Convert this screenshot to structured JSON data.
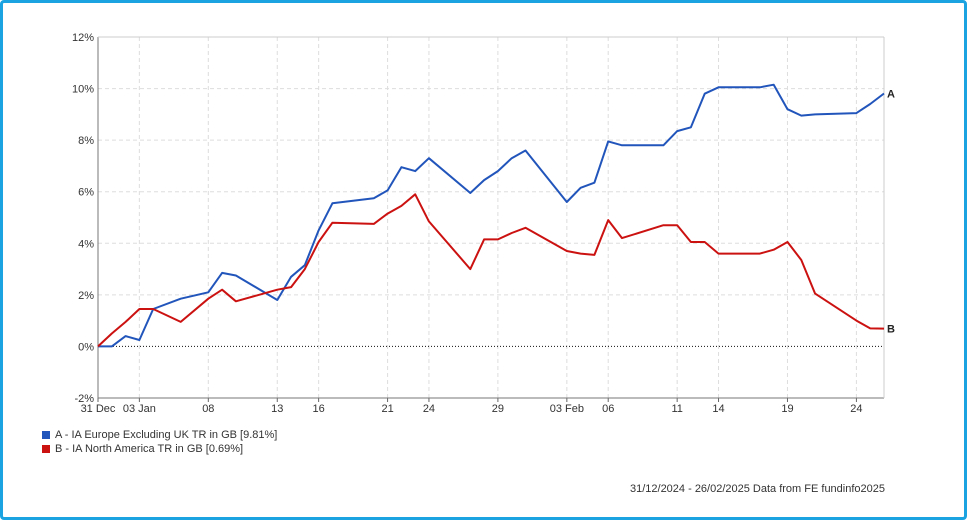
{
  "chart_data": {
    "type": "line",
    "y_ticks": [
      "-2%",
      "0%",
      "2%",
      "4%",
      "6%",
      "8%",
      "10%",
      "12%"
    ],
    "ylim": [
      -2,
      12
    ],
    "y_tick_values": [
      -2,
      0,
      2,
      4,
      6,
      8,
      10,
      12
    ],
    "x_tick_labels": [
      "31 Dec",
      "03 Jan",
      "08",
      "13",
      "16",
      "21",
      "24",
      "29",
      "03 Feb",
      "06",
      "11",
      "14",
      "19",
      "24"
    ],
    "x_tick_values": [
      "2024-12-31",
      "2025-01-03",
      "2025-01-08",
      "2025-01-13",
      "2025-01-16",
      "2025-01-21",
      "2025-01-24",
      "2025-01-29",
      "2025-02-03",
      "2025-02-06",
      "2025-02-11",
      "2025-02-14",
      "2025-02-19",
      "2025-02-24"
    ],
    "xlim": [
      "2024-12-31",
      "2025-02-26"
    ],
    "zero_line": true,
    "grid": true,
    "series": [
      {
        "name": "A - IA Europe Excluding UK TR in GB [9.81%]",
        "end_label": "A",
        "color": "#2255bb",
        "points": [
          [
            "2024-12-31",
            0
          ],
          [
            "2025-01-01",
            0
          ],
          [
            "2025-01-02",
            0.4
          ],
          [
            "2025-01-03",
            0.25
          ],
          [
            "2025-01-04",
            1.45
          ],
          [
            "2025-01-06",
            1.85
          ],
          [
            "2025-01-08",
            2.1
          ],
          [
            "2025-01-09",
            2.85
          ],
          [
            "2025-01-10",
            2.75
          ],
          [
            "2025-01-13",
            1.8
          ],
          [
            "2025-01-14",
            2.7
          ],
          [
            "2025-01-15",
            3.15
          ],
          [
            "2025-01-16",
            4.5
          ],
          [
            "2025-01-17",
            5.55
          ],
          [
            "2025-01-20",
            5.75
          ],
          [
            "2025-01-21",
            6.05
          ],
          [
            "2025-01-22",
            6.95
          ],
          [
            "2025-01-23",
            6.8
          ],
          [
            "2025-01-24",
            7.3
          ],
          [
            "2025-01-27",
            5.95
          ],
          [
            "2025-01-28",
            6.45
          ],
          [
            "2025-01-29",
            6.8
          ],
          [
            "2025-01-30",
            7.3
          ],
          [
            "2025-01-31",
            7.6
          ],
          [
            "2025-02-03",
            5.6
          ],
          [
            "2025-02-04",
            6.15
          ],
          [
            "2025-02-05",
            6.35
          ],
          [
            "2025-02-06",
            7.95
          ],
          [
            "2025-02-07",
            7.8
          ],
          [
            "2025-02-10",
            7.8
          ],
          [
            "2025-02-11",
            8.35
          ],
          [
            "2025-02-12",
            8.5
          ],
          [
            "2025-02-13",
            9.8
          ],
          [
            "2025-02-14",
            10.05
          ],
          [
            "2025-02-17",
            10.05
          ],
          [
            "2025-02-18",
            10.15
          ],
          [
            "2025-02-19",
            9.2
          ],
          [
            "2025-02-20",
            8.95
          ],
          [
            "2025-02-21",
            9.0
          ],
          [
            "2025-02-24",
            9.05
          ],
          [
            "2025-02-25",
            9.4
          ],
          [
            "2025-02-26",
            9.81
          ]
        ]
      },
      {
        "name": "B - IA North America TR in GB [0.69%]",
        "end_label": "B",
        "color": "#cc1111",
        "points": [
          [
            "2024-12-31",
            0
          ],
          [
            "2025-01-01",
            0.5
          ],
          [
            "2025-01-02",
            0.95
          ],
          [
            "2025-01-03",
            1.45
          ],
          [
            "2025-01-04",
            1.45
          ],
          [
            "2025-01-06",
            0.95
          ],
          [
            "2025-01-08",
            1.85
          ],
          [
            "2025-01-09",
            2.2
          ],
          [
            "2025-01-10",
            1.75
          ],
          [
            "2025-01-13",
            2.2
          ],
          [
            "2025-01-14",
            2.3
          ],
          [
            "2025-01-15",
            3.0
          ],
          [
            "2025-01-16",
            4.05
          ],
          [
            "2025-01-17",
            4.8
          ],
          [
            "2025-01-20",
            4.75
          ],
          [
            "2025-01-21",
            5.15
          ],
          [
            "2025-01-22",
            5.45
          ],
          [
            "2025-01-23",
            5.9
          ],
          [
            "2025-01-24",
            4.85
          ],
          [
            "2025-01-27",
            3.0
          ],
          [
            "2025-01-28",
            4.15
          ],
          [
            "2025-01-29",
            4.15
          ],
          [
            "2025-01-30",
            4.4
          ],
          [
            "2025-01-31",
            4.6
          ],
          [
            "2025-02-03",
            3.7
          ],
          [
            "2025-02-04",
            3.6
          ],
          [
            "2025-02-05",
            3.55
          ],
          [
            "2025-02-06",
            4.9
          ],
          [
            "2025-02-07",
            4.2
          ],
          [
            "2025-02-10",
            4.7
          ],
          [
            "2025-02-11",
            4.7
          ],
          [
            "2025-02-12",
            4.05
          ],
          [
            "2025-02-13",
            4.05
          ],
          [
            "2025-02-14",
            3.6
          ],
          [
            "2025-02-17",
            3.6
          ],
          [
            "2025-02-18",
            3.75
          ],
          [
            "2025-02-19",
            4.05
          ],
          [
            "2025-02-20",
            3.35
          ],
          [
            "2025-02-21",
            2.05
          ],
          [
            "2025-02-24",
            1.0
          ],
          [
            "2025-02-25",
            0.7
          ],
          [
            "2025-02-26",
            0.69
          ]
        ]
      }
    ],
    "legend": [
      {
        "label": "A - IA Europe Excluding UK TR in GB [9.81%]",
        "color": "#2255bb"
      },
      {
        "label": "B - IA North America TR in GB [0.69%]",
        "color": "#cc1111"
      }
    ],
    "legend_placement": "bottom-left",
    "footer": "31/12/2024 - 26/02/2025 Data from FE fundinfo2025"
  }
}
